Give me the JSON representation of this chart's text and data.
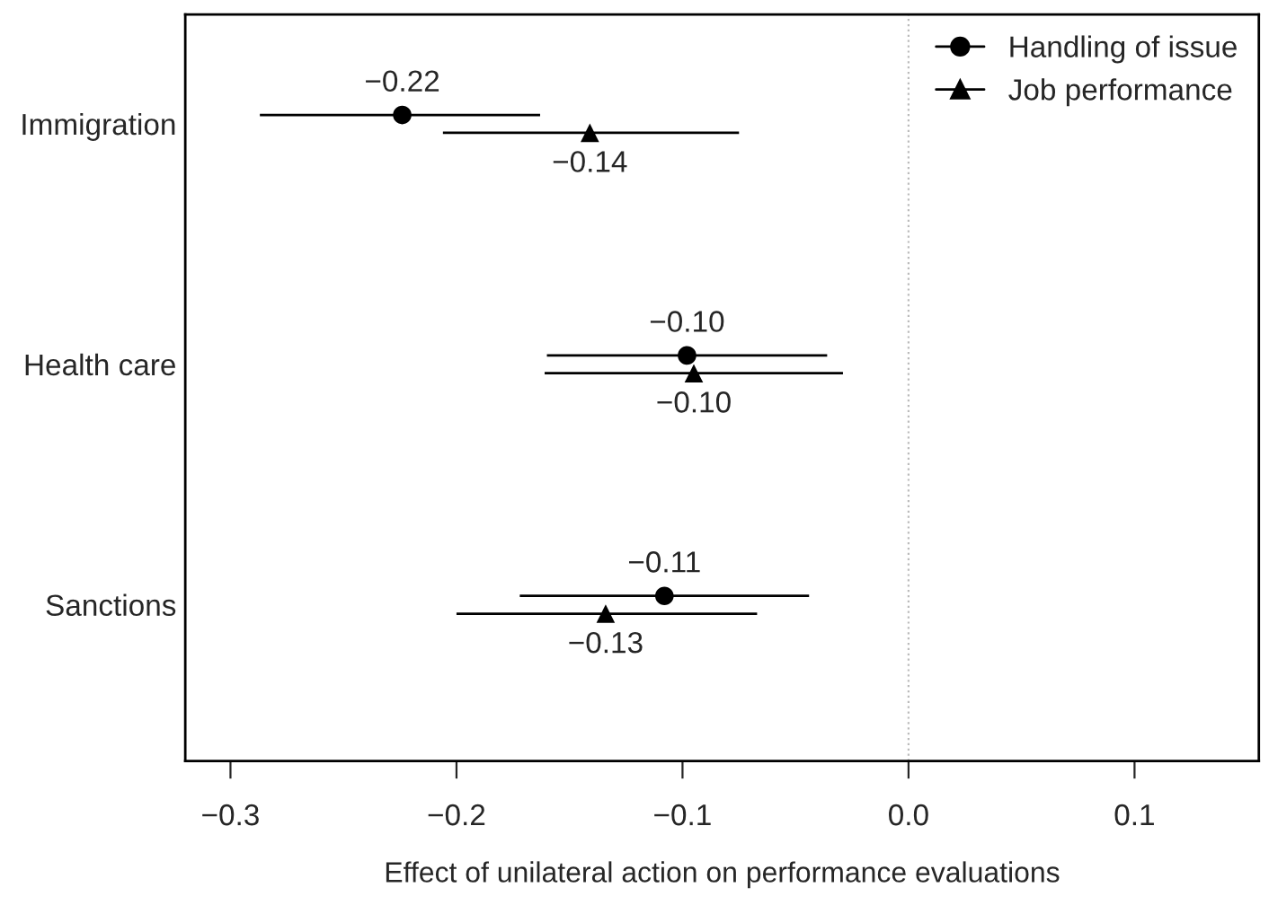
{
  "chart_data": {
    "type": "scatter",
    "orientation": "horizontal",
    "xlabel": "Effect of unilateral action on performance evaluations",
    "categories": [
      "Immigration",
      "Health care",
      "Sanctions"
    ],
    "series": [
      {
        "name": "Handling of issue",
        "color": "#000000",
        "marker": "circle",
        "values": [
          -0.224,
          -0.098,
          -0.108
        ],
        "errors": [
          [
            -0.287,
            -0.163
          ],
          [
            -0.16,
            -0.036
          ],
          [
            -0.172,
            -0.044
          ]
        ],
        "value_labels": [
          "−0.22",
          "−0.10",
          "−0.11"
        ]
      },
      {
        "name": "Job performance",
        "color": "#000000",
        "marker": "triangle",
        "values": [
          -0.141,
          -0.095,
          -0.134
        ],
        "errors": [
          [
            -0.206,
            -0.075
          ],
          [
            -0.161,
            -0.029
          ],
          [
            -0.2,
            -0.067
          ]
        ],
        "value_labels": [
          "−0.14",
          "−0.10",
          "−0.13"
        ]
      }
    ],
    "xlim": [
      -0.32,
      0.155
    ],
    "xticks": [
      {
        "value": -0.3,
        "label": "−0.3"
      },
      {
        "value": -0.2,
        "label": "−0.2"
      },
      {
        "value": -0.1,
        "label": "−0.1"
      },
      {
        "value": 0,
        "label": "0.0"
      },
      {
        "value": 0.1,
        "label": "0.1"
      }
    ],
    "ref_lines": [
      {
        "axis": "x",
        "value": 0,
        "color": "#bbbbbb",
        "line_style": "dotted"
      }
    ],
    "legend": "top right",
    "grid": false
  }
}
